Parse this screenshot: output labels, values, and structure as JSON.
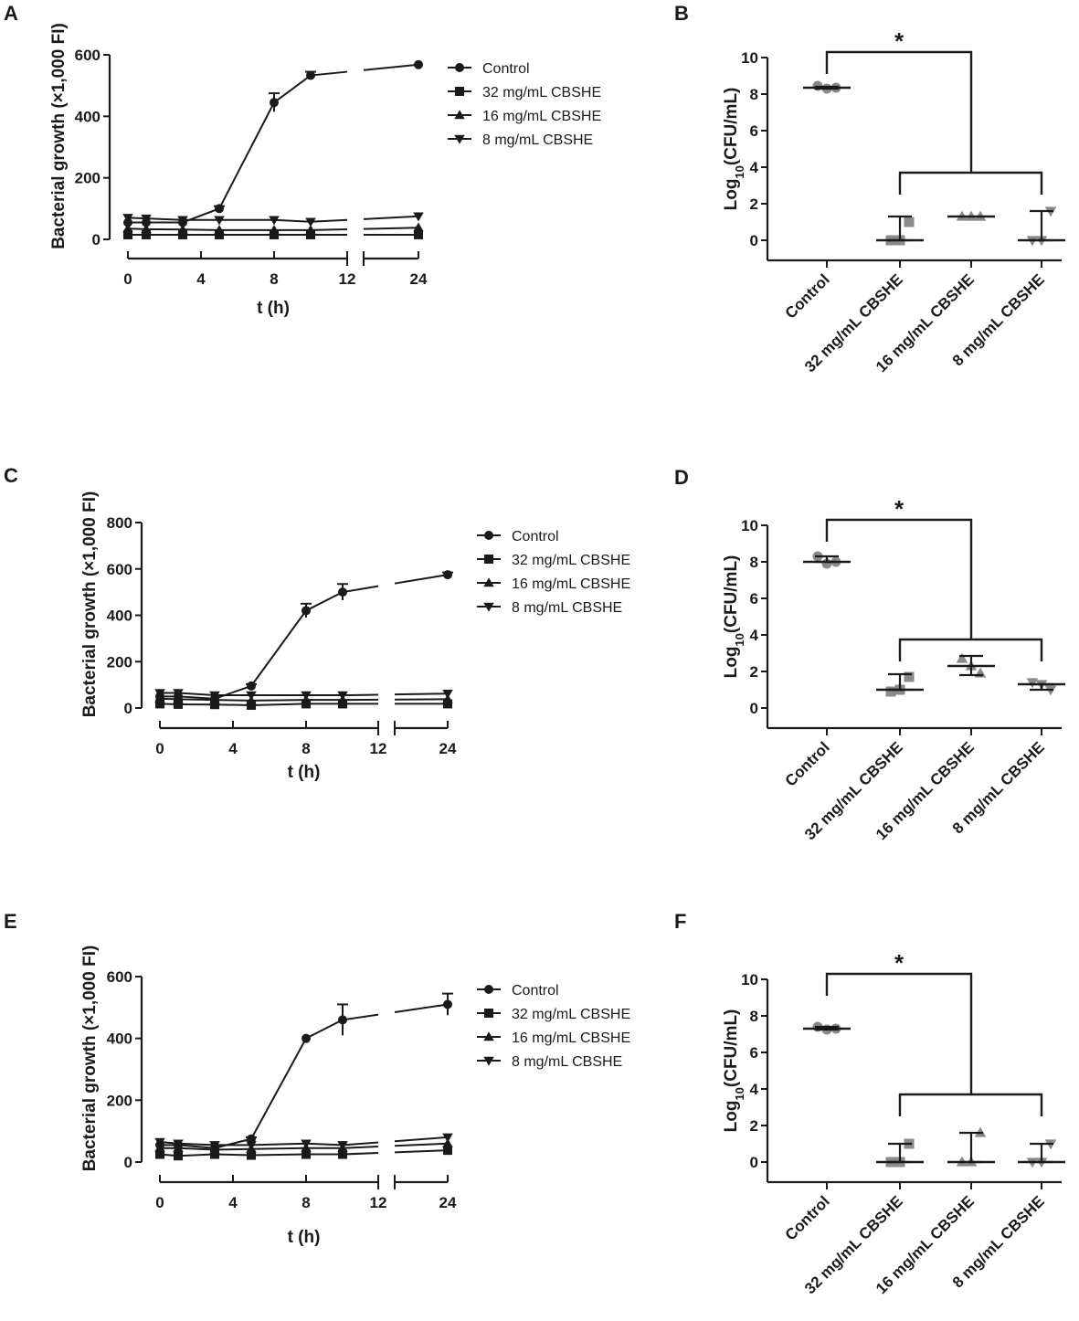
{
  "chart_data": [
    {
      "panel": "A",
      "type": "line",
      "ylabel": "Bacterial growth (×1,000 FI)",
      "xlabel": "t (h)",
      "ylim": [
        0,
        600
      ],
      "yticks": [
        0,
        200,
        400,
        600
      ],
      "xticks": [
        "0",
        "4",
        "8",
        "12",
        "24"
      ],
      "x": [
        0,
        1,
        3,
        5,
        8,
        10,
        24
      ],
      "series": [
        {
          "name": "Control",
          "marker": "circle",
          "values": [
            55,
            55,
            55,
            100,
            445,
            533,
            568
          ],
          "err": [
            0,
            0,
            0,
            8,
            30,
            12,
            0
          ]
        },
        {
          "name": "32 mg/mL CBSHE",
          "marker": "square",
          "values": [
            15,
            15,
            15,
            15,
            15,
            15,
            15
          ],
          "err": [
            0,
            0,
            0,
            0,
            0,
            0,
            0
          ]
        },
        {
          "name": "16 mg/mL CBSHE",
          "marker": "triangle-up",
          "values": [
            35,
            33,
            32,
            30,
            30,
            30,
            38
          ],
          "err": [
            0,
            0,
            0,
            0,
            0,
            0,
            0
          ]
        },
        {
          "name": "8 mg/mL CBSHE",
          "marker": "triangle-down",
          "values": [
            70,
            68,
            63,
            63,
            63,
            57,
            75
          ],
          "err": [
            0,
            0,
            0,
            0,
            0,
            0,
            0
          ]
        }
      ]
    },
    {
      "panel": "B",
      "type": "scatter",
      "ylabel": "Log10(CFU/mL)",
      "ylim": [
        0,
        10
      ],
      "yticks": [
        0,
        2,
        4,
        6,
        8,
        10
      ],
      "categories": [
        "Control",
        "32 mg/mL CBSHE",
        "16 mg/mL CBSHE",
        "8 mg/mL CBSHE"
      ],
      "groups": [
        {
          "points": [
            8.45,
            8.3,
            8.35
          ],
          "median": 8.35,
          "low": 8.3,
          "high": 8.4
        },
        {
          "points": [
            0,
            0,
            1.0
          ],
          "median": 0,
          "low": 0,
          "high": 1.3
        },
        {
          "points": [
            1.3,
            1.3,
            1.3
          ],
          "median": 1.3,
          "low": 1.3,
          "high": 1.3
        },
        {
          "points": [
            0,
            0,
            1.6
          ],
          "median": 0,
          "low": 0,
          "high": 1.6
        }
      ],
      "annotation": "*"
    },
    {
      "panel": "C",
      "type": "line",
      "ylabel": "Bacterial growth (×1,000 FI)",
      "xlabel": "t (h)",
      "ylim": [
        0,
        800
      ],
      "yticks": [
        0,
        200,
        400,
        600,
        800
      ],
      "xticks": [
        "0",
        "4",
        "8",
        "12",
        "24"
      ],
      "x": [
        0,
        1,
        3,
        5,
        8,
        10,
        24
      ],
      "series": [
        {
          "name": "Control",
          "marker": "circle",
          "values": [
            50,
            50,
            40,
            95,
            420,
            500,
            575
          ],
          "err": [
            0,
            0,
            0,
            8,
            30,
            35,
            10
          ]
        },
        {
          "name": "32 mg/mL CBSHE",
          "marker": "square",
          "values": [
            18,
            16,
            15,
            12,
            18,
            18,
            18
          ],
          "err": [
            0,
            0,
            0,
            0,
            0,
            0,
            0
          ]
        },
        {
          "name": "16 mg/mL CBSHE",
          "marker": "triangle-up",
          "values": [
            40,
            38,
            35,
            32,
            35,
            35,
            38
          ],
          "err": [
            0,
            0,
            0,
            0,
            0,
            0,
            0
          ]
        },
        {
          "name": "8 mg/mL CBSHE",
          "marker": "triangle-down",
          "values": [
            65,
            65,
            55,
            55,
            55,
            55,
            62
          ],
          "err": [
            0,
            0,
            0,
            0,
            0,
            0,
            0
          ]
        }
      ]
    },
    {
      "panel": "D",
      "type": "scatter",
      "ylabel": "Log10(CFU/mL)",
      "ylim": [
        0,
        10
      ],
      "yticks": [
        0,
        2,
        4,
        6,
        8,
        10
      ],
      "categories": [
        "Control",
        "32 mg/mL CBSHE",
        "16 mg/mL CBSHE",
        "8 mg/mL CBSHE"
      ],
      "groups": [
        {
          "points": [
            8.3,
            7.9,
            8.0
          ],
          "median": 8.0,
          "low": 8.0,
          "high": 8.3
        },
        {
          "points": [
            0.9,
            1.0,
            1.7
          ],
          "median": 1.0,
          "low": 1.0,
          "high": 1.85
        },
        {
          "points": [
            2.7,
            2.3,
            1.9
          ],
          "median": 2.3,
          "low": 1.8,
          "high": 2.85
        },
        {
          "points": [
            1.4,
            1.3,
            1.0
          ],
          "median": 1.3,
          "low": 1.0,
          "high": 1.3
        }
      ],
      "annotation": "*"
    },
    {
      "panel": "E",
      "type": "line",
      "ylabel": "Bacterial growth (×1,000 FI)",
      "xlabel": "t (h)",
      "ylim": [
        0,
        600
      ],
      "yticks": [
        0,
        200,
        400,
        600
      ],
      "xticks": [
        "0",
        "4",
        "8",
        "12",
        "24"
      ],
      "x": [
        0,
        1,
        3,
        5,
        8,
        10,
        24
      ],
      "series": [
        {
          "name": "Control",
          "marker": "circle",
          "values": [
            55,
            55,
            45,
            75,
            400,
            460,
            510
          ],
          "err": [
            0,
            0,
            0,
            5,
            0,
            50,
            35
          ]
        },
        {
          "name": "32 mg/mL CBSHE",
          "marker": "square",
          "values": [
            25,
            20,
            25,
            22,
            25,
            25,
            38
          ],
          "err": [
            0,
            0,
            0,
            0,
            0,
            0,
            0
          ]
        },
        {
          "name": "16 mg/mL CBSHE",
          "marker": "triangle-up",
          "values": [
            45,
            45,
            40,
            42,
            45,
            45,
            60
          ],
          "err": [
            0,
            0,
            0,
            0,
            0,
            0,
            0
          ]
        },
        {
          "name": "8 mg/mL CBSHE",
          "marker": "triangle-down",
          "values": [
            65,
            60,
            55,
            55,
            60,
            55,
            80
          ],
          "err": [
            0,
            0,
            0,
            0,
            0,
            0,
            0
          ]
        }
      ]
    },
    {
      "panel": "F",
      "type": "scatter",
      "ylabel": "Log10(CFU/mL)",
      "ylim": [
        0,
        10
      ],
      "yticks": [
        0,
        2,
        4,
        6,
        8,
        10
      ],
      "categories": [
        "Control",
        "32 mg/mL CBSHE",
        "16 mg/mL CBSHE",
        "8 mg/mL CBSHE"
      ],
      "groups": [
        {
          "points": [
            7.4,
            7.25,
            7.3
          ],
          "median": 7.3,
          "low": 7.25,
          "high": 7.4
        },
        {
          "points": [
            0,
            0,
            1.0
          ],
          "median": 0,
          "low": 0,
          "high": 1.0
        },
        {
          "points": [
            0,
            0,
            1.6
          ],
          "median": 0,
          "low": 0,
          "high": 1.6
        },
        {
          "points": [
            0,
            0,
            1.0
          ],
          "median": 0,
          "low": 0,
          "high": 1.0
        }
      ],
      "annotation": "*"
    }
  ]
}
